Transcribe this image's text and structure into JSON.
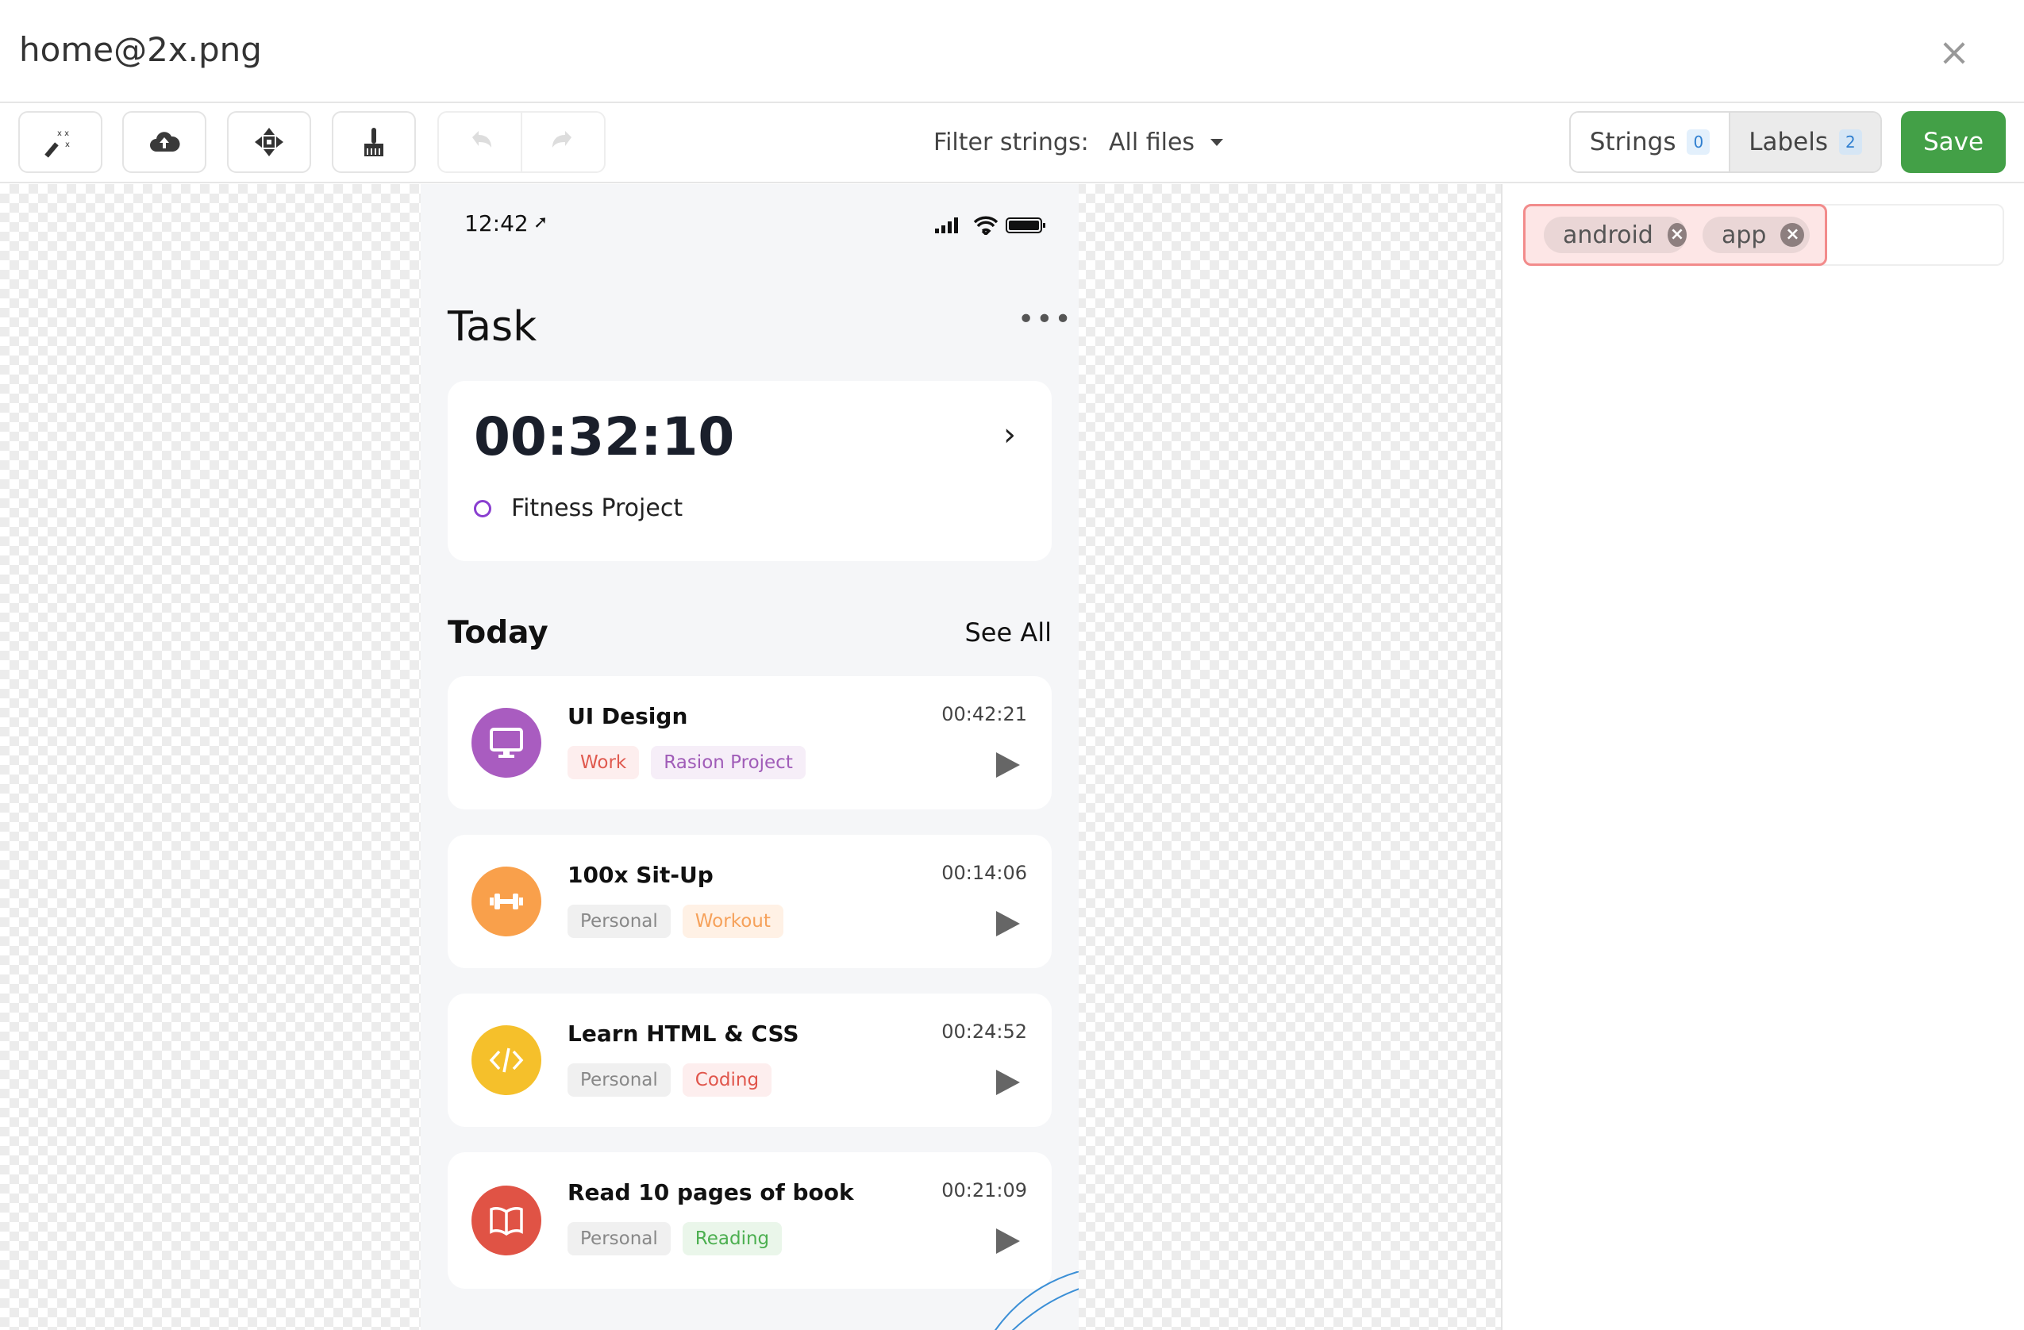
{
  "window": {
    "title": "home@2x.png",
    "close_icon": "close-icon"
  },
  "toolbar": {
    "tools": [
      "magic-wand-icon",
      "cloud-upload-icon",
      "move-icon",
      "broom-icon"
    ],
    "undo_icon": "undo-icon",
    "redo_icon": "redo-icon",
    "filter_label": "Filter strings:",
    "filter_value": "All files",
    "strings_label": "Strings",
    "strings_count": "0",
    "labels_label": "Labels",
    "labels_count": "2",
    "save_label": "Save",
    "save_color": "#43a047"
  },
  "labels": [
    {
      "text": "android"
    },
    {
      "text": "app"
    }
  ],
  "phone": {
    "time": "12:42",
    "title": "Task",
    "timer": "00:32:10",
    "project": "Fitness Project",
    "section": "Today",
    "see_all": "See All",
    "tasks": [
      {
        "title": "UI Design",
        "time": "00:42:21",
        "icon": "monitor-icon",
        "color": "#a95cc0",
        "tags": [
          {
            "text": "Work",
            "bg": "#fdeeee",
            "fg": "#e05a4f"
          },
          {
            "text": "Rasion Project",
            "bg": "#f6eef8",
            "fg": "#a05cb8"
          }
        ]
      },
      {
        "title": "100x Sit-Up",
        "time": "00:14:06",
        "icon": "dumbbell-icon",
        "color": "#f9a04b",
        "tags": [
          {
            "text": "Personal",
            "bg": "#f0f0f0",
            "fg": "#888888"
          },
          {
            "text": "Workout",
            "bg": "#fff1e5",
            "fg": "#f6a15a"
          }
        ]
      },
      {
        "title": "Learn HTML & CSS",
        "time": "00:24:52",
        "icon": "code-icon",
        "color": "#f5c02b",
        "tags": [
          {
            "text": "Personal",
            "bg": "#f0f0f0",
            "fg": "#888888"
          },
          {
            "text": "Coding",
            "bg": "#fdeeee",
            "fg": "#e0554b"
          }
        ]
      },
      {
        "title": "Read 10 pages of book",
        "time": "00:21:09",
        "icon": "book-icon",
        "color": "#e05345",
        "tags": [
          {
            "text": "Personal",
            "bg": "#f0f0f0",
            "fg": "#888888"
          },
          {
            "text": "Reading",
            "bg": "#eaf6ea",
            "fg": "#4caf50"
          }
        ]
      }
    ]
  }
}
